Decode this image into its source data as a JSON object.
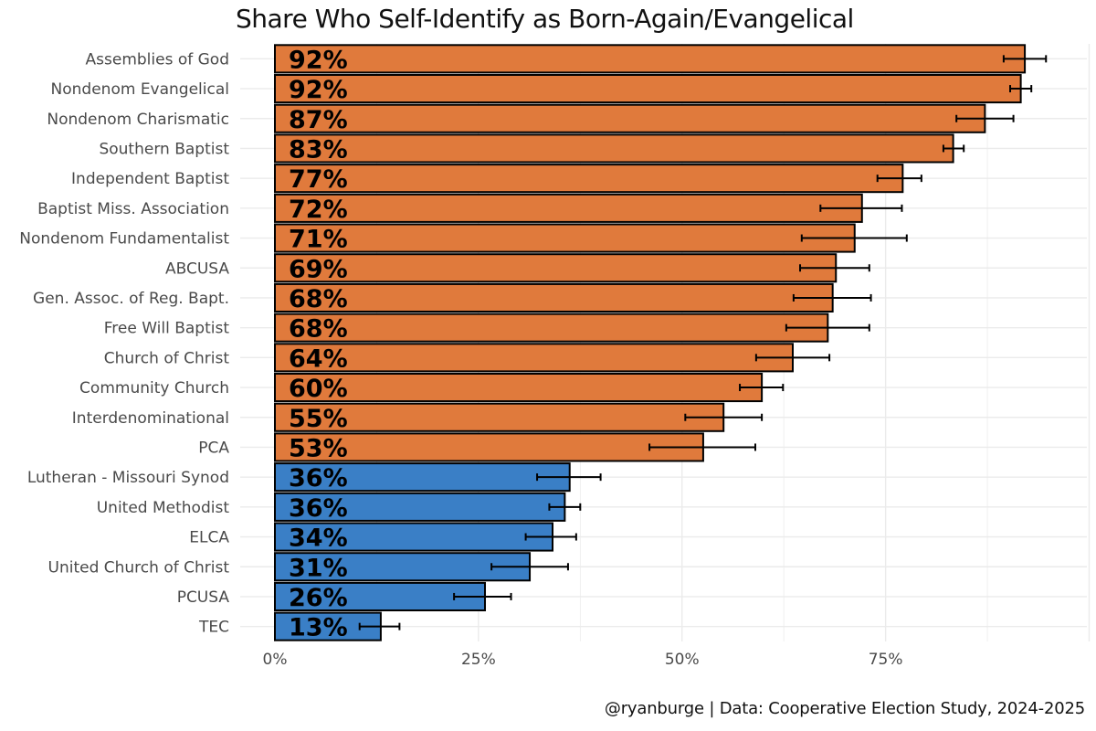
{
  "chart_data": {
    "type": "bar",
    "orientation": "horizontal",
    "title": "Share Who Self-Identify as Born-Again/Evangelical",
    "caption": "@ryanburge | Data: Cooperative Election Study, 2024-2025",
    "xlabel": "",
    "ylabel": "",
    "xlim": [
      0,
      100
    ],
    "x_ticks": [
      0,
      25,
      50,
      75
    ],
    "x_tick_labels": [
      "0%",
      "25%",
      "50%",
      "75%"
    ],
    "grid": true,
    "colors": {
      "evangelical": "#E07A3C",
      "mainline": "#3A7FC6",
      "error_bar": "#000000",
      "grid": "#EBEBEB"
    },
    "categories": [
      "Assemblies of God",
      "Nondenom Evangelical",
      "Nondenom Charismatic",
      "Southern Baptist",
      "Independent Baptist",
      "Baptist Miss. Association",
      "Nondenom Fundamentalist",
      "ABCUSA",
      "Gen. Assoc. of Reg. Bapt.",
      "Free Will Baptist",
      "Church of Christ",
      "Community Church",
      "Interdenominational",
      "PCA",
      "Lutheran - Missouri Synod",
      "United Methodist",
      "ELCA",
      "United Church of Christ",
      "PCUSA",
      "TEC"
    ],
    "values": [
      92.1,
      91.6,
      87.2,
      83.3,
      77.1,
      72.1,
      71.2,
      68.9,
      68.5,
      67.9,
      63.6,
      59.8,
      55.1,
      52.6,
      36.2,
      35.6,
      34.1,
      31.3,
      25.8,
      13.0
    ],
    "value_labels": [
      "92%",
      "92%",
      "87%",
      "83%",
      "77%",
      "72%",
      "71%",
      "69%",
      "68%",
      "68%",
      "64%",
      "60%",
      "55%",
      "53%",
      "36%",
      "36%",
      "34%",
      "31%",
      "26%",
      "13%"
    ],
    "error_low": [
      89.5,
      90.3,
      83.7,
      82.1,
      74.0,
      67.0,
      64.7,
      64.5,
      63.7,
      62.8,
      59.1,
      57.1,
      50.4,
      46.0,
      32.2,
      33.7,
      30.8,
      26.6,
      22.0,
      10.4
    ],
    "error_high": [
      94.7,
      92.9,
      90.7,
      84.6,
      79.4,
      77.0,
      77.6,
      73.0,
      73.2,
      73.0,
      68.1,
      62.4,
      59.8,
      59.0,
      40.0,
      37.5,
      37.0,
      36.0,
      29.0,
      15.3
    ],
    "groups": [
      "evangelical",
      "evangelical",
      "evangelical",
      "evangelical",
      "evangelical",
      "evangelical",
      "evangelical",
      "evangelical",
      "evangelical",
      "evangelical",
      "evangelical",
      "evangelical",
      "evangelical",
      "evangelical",
      "mainline",
      "mainline",
      "mainline",
      "mainline",
      "mainline",
      "mainline"
    ]
  }
}
